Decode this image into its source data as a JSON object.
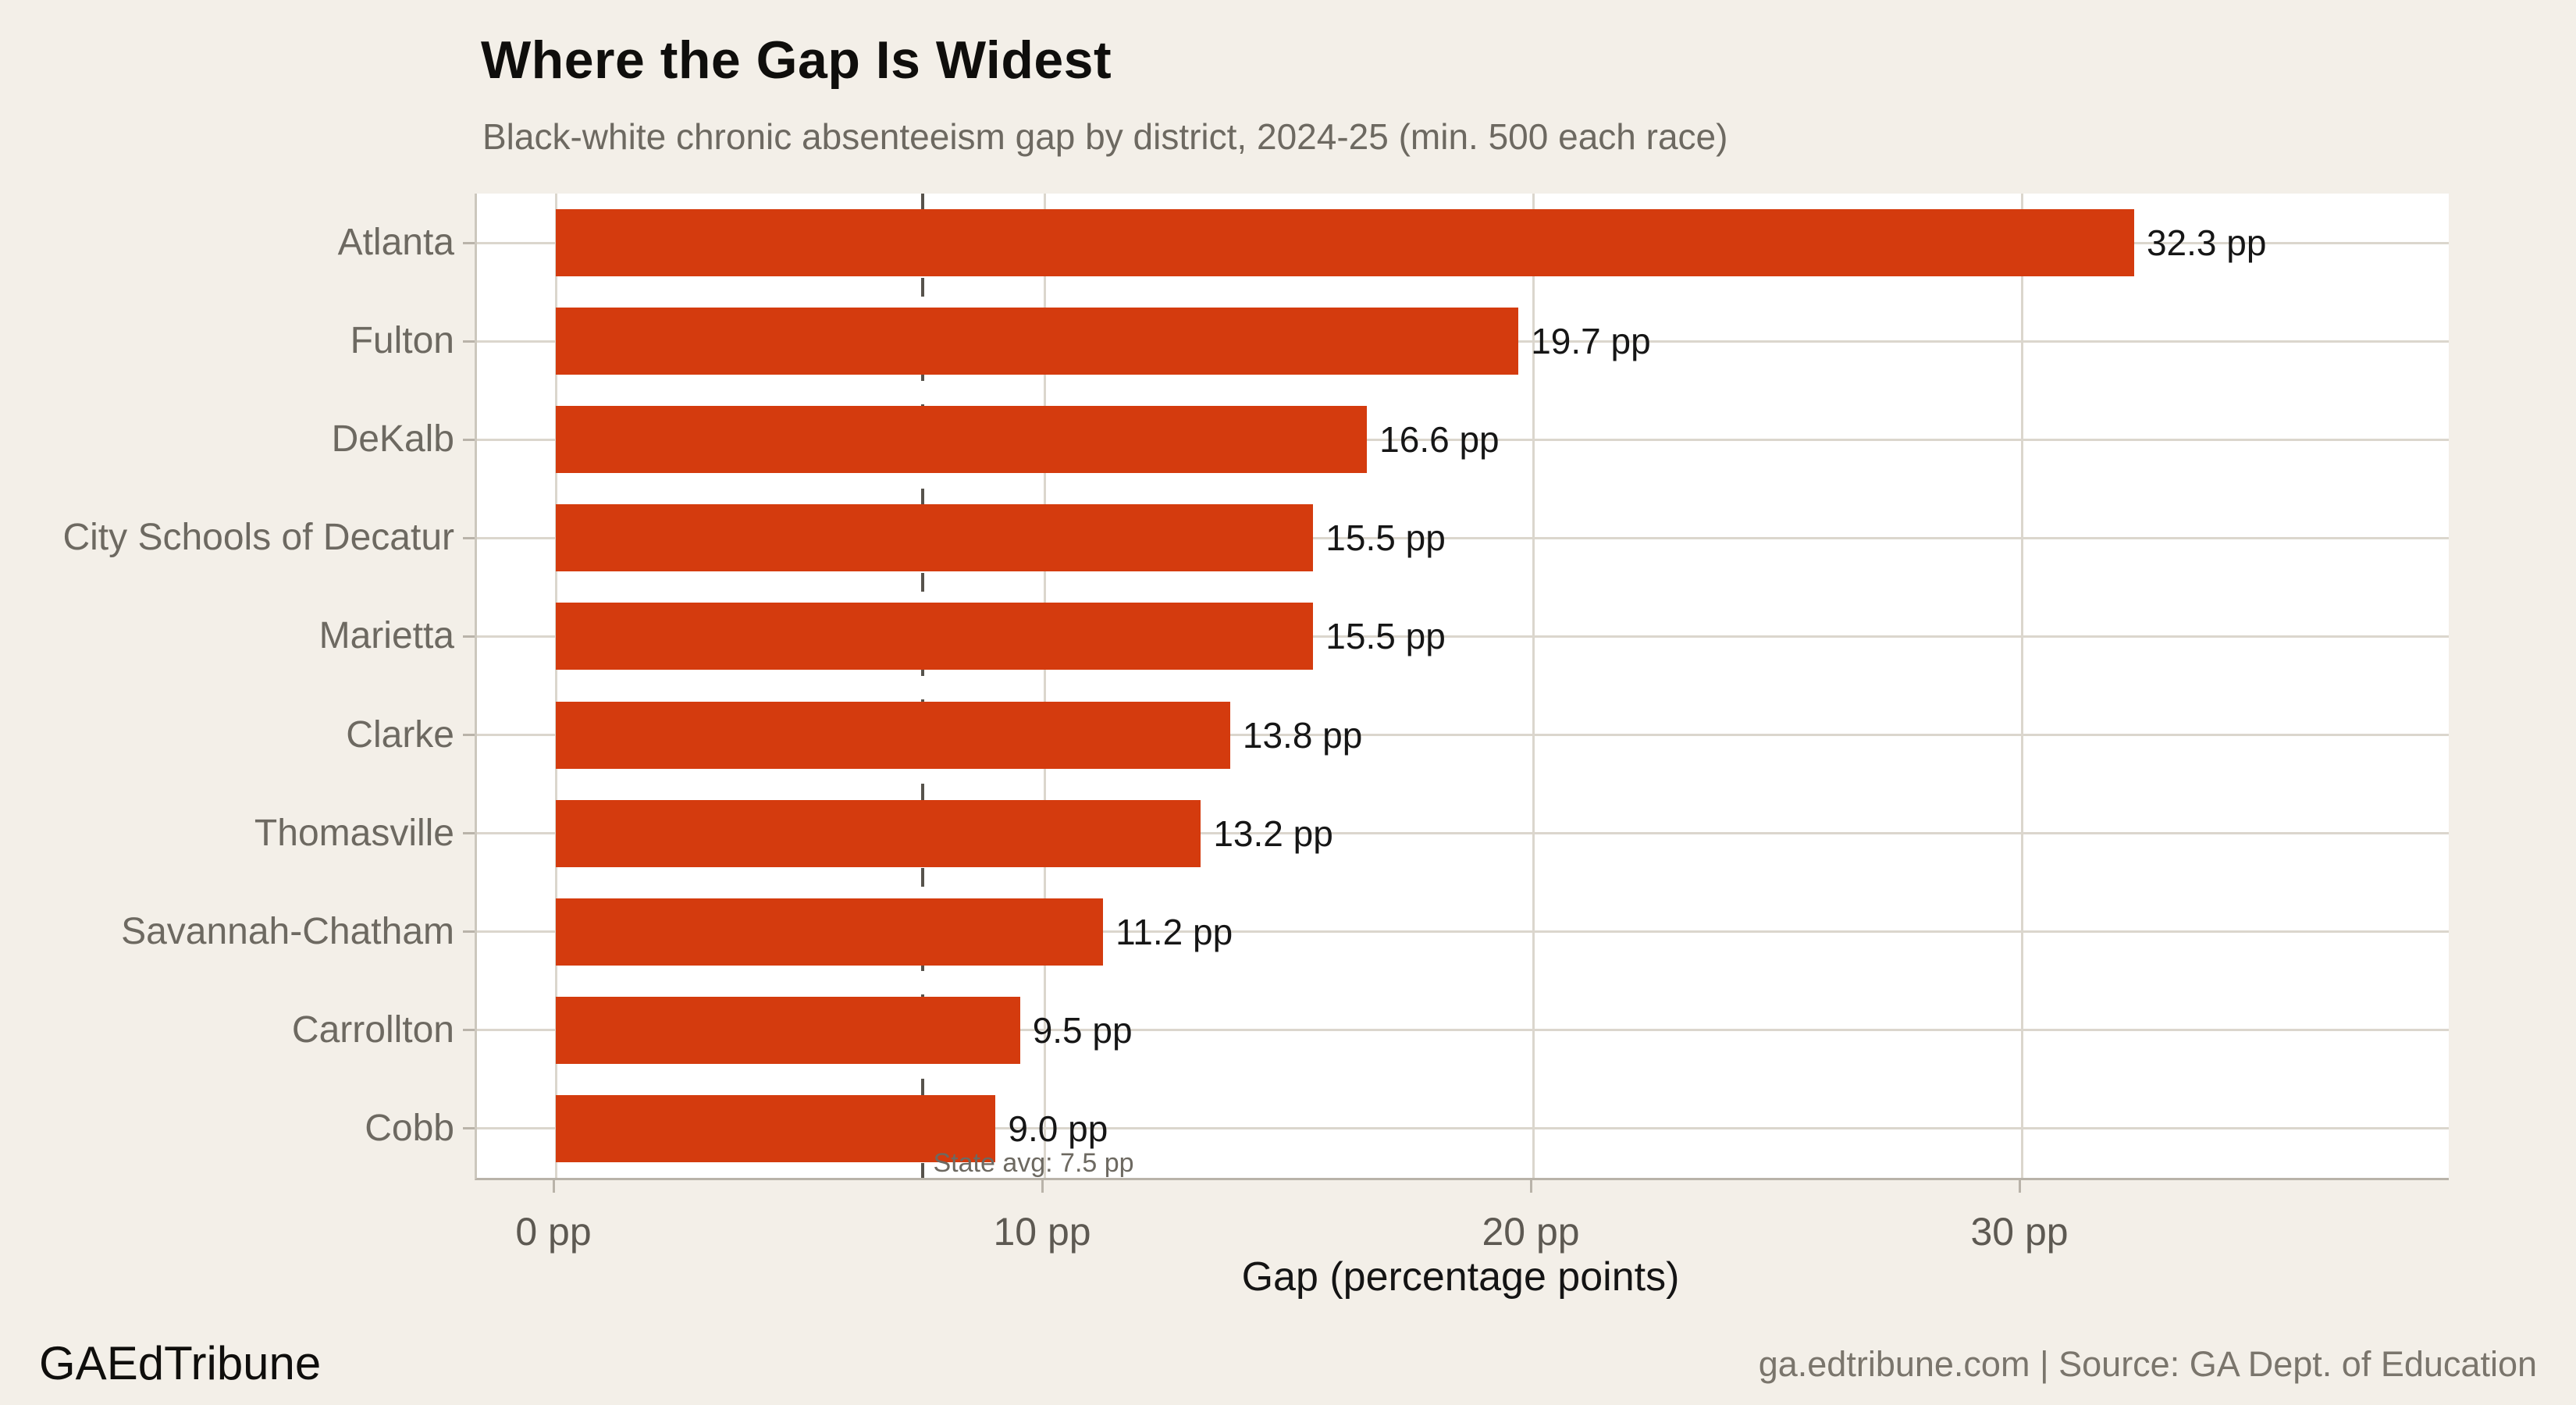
{
  "header": {
    "title": "Where the Gap Is Widest",
    "subtitle": "Black-white chronic absenteeism gap by district, 2024-25 (min. 500 each race)"
  },
  "chart_data": {
    "type": "bar",
    "orientation": "horizontal",
    "title": "Where the Gap Is Widest",
    "subtitle": "Black-white chronic absenteeism gap by district, 2024-25 (min. 500 each race)",
    "categories": [
      "Atlanta",
      "Fulton",
      "DeKalb",
      "City Schools of Decatur",
      "Marietta",
      "Clarke",
      "Thomasville",
      "Savannah-Chatham",
      "Carrollton",
      "Cobb"
    ],
    "values": [
      32.3,
      19.7,
      16.6,
      15.5,
      15.5,
      13.8,
      13.2,
      11.2,
      9.5,
      9.0
    ],
    "value_suffix": " pp",
    "value_labels": [
      "32.3 pp",
      "19.7 pp",
      "16.6 pp",
      "15.5 pp",
      "15.5 pp",
      "13.8 pp",
      "13.2 pp",
      "11.2 pp",
      "9.5 pp",
      "9.0 pp"
    ],
    "xlabel": "Gap (percentage points)",
    "ylabel": "",
    "x_ticks": [
      0,
      10,
      20,
      30
    ],
    "x_tick_labels": [
      "0 pp",
      "10 pp",
      "20 pp",
      "30 pp"
    ],
    "xlim": [
      -1.6,
      38.8
    ],
    "grid": "vertical major gridlines at x ticks, horizontal gridline per category",
    "legend": "none",
    "reference_line": {
      "value": 7.5,
      "label": "State avg: 7.5 pp",
      "style": "dashed"
    },
    "colors": {
      "bar": "#d43b0e",
      "background": "#f3efe8",
      "panel_background": "#ffffff",
      "gridline": "#dbd6cd",
      "axis_line": "#b9b3a9",
      "reference_line": "#57534c",
      "tick_label": "#5d5952",
      "category_label": "#6d6961",
      "value_label": "#161616"
    }
  },
  "footer": {
    "brand": "GAEdTribune",
    "attribution": "ga.edtribune.com | Source: GA Dept. of Education"
  }
}
